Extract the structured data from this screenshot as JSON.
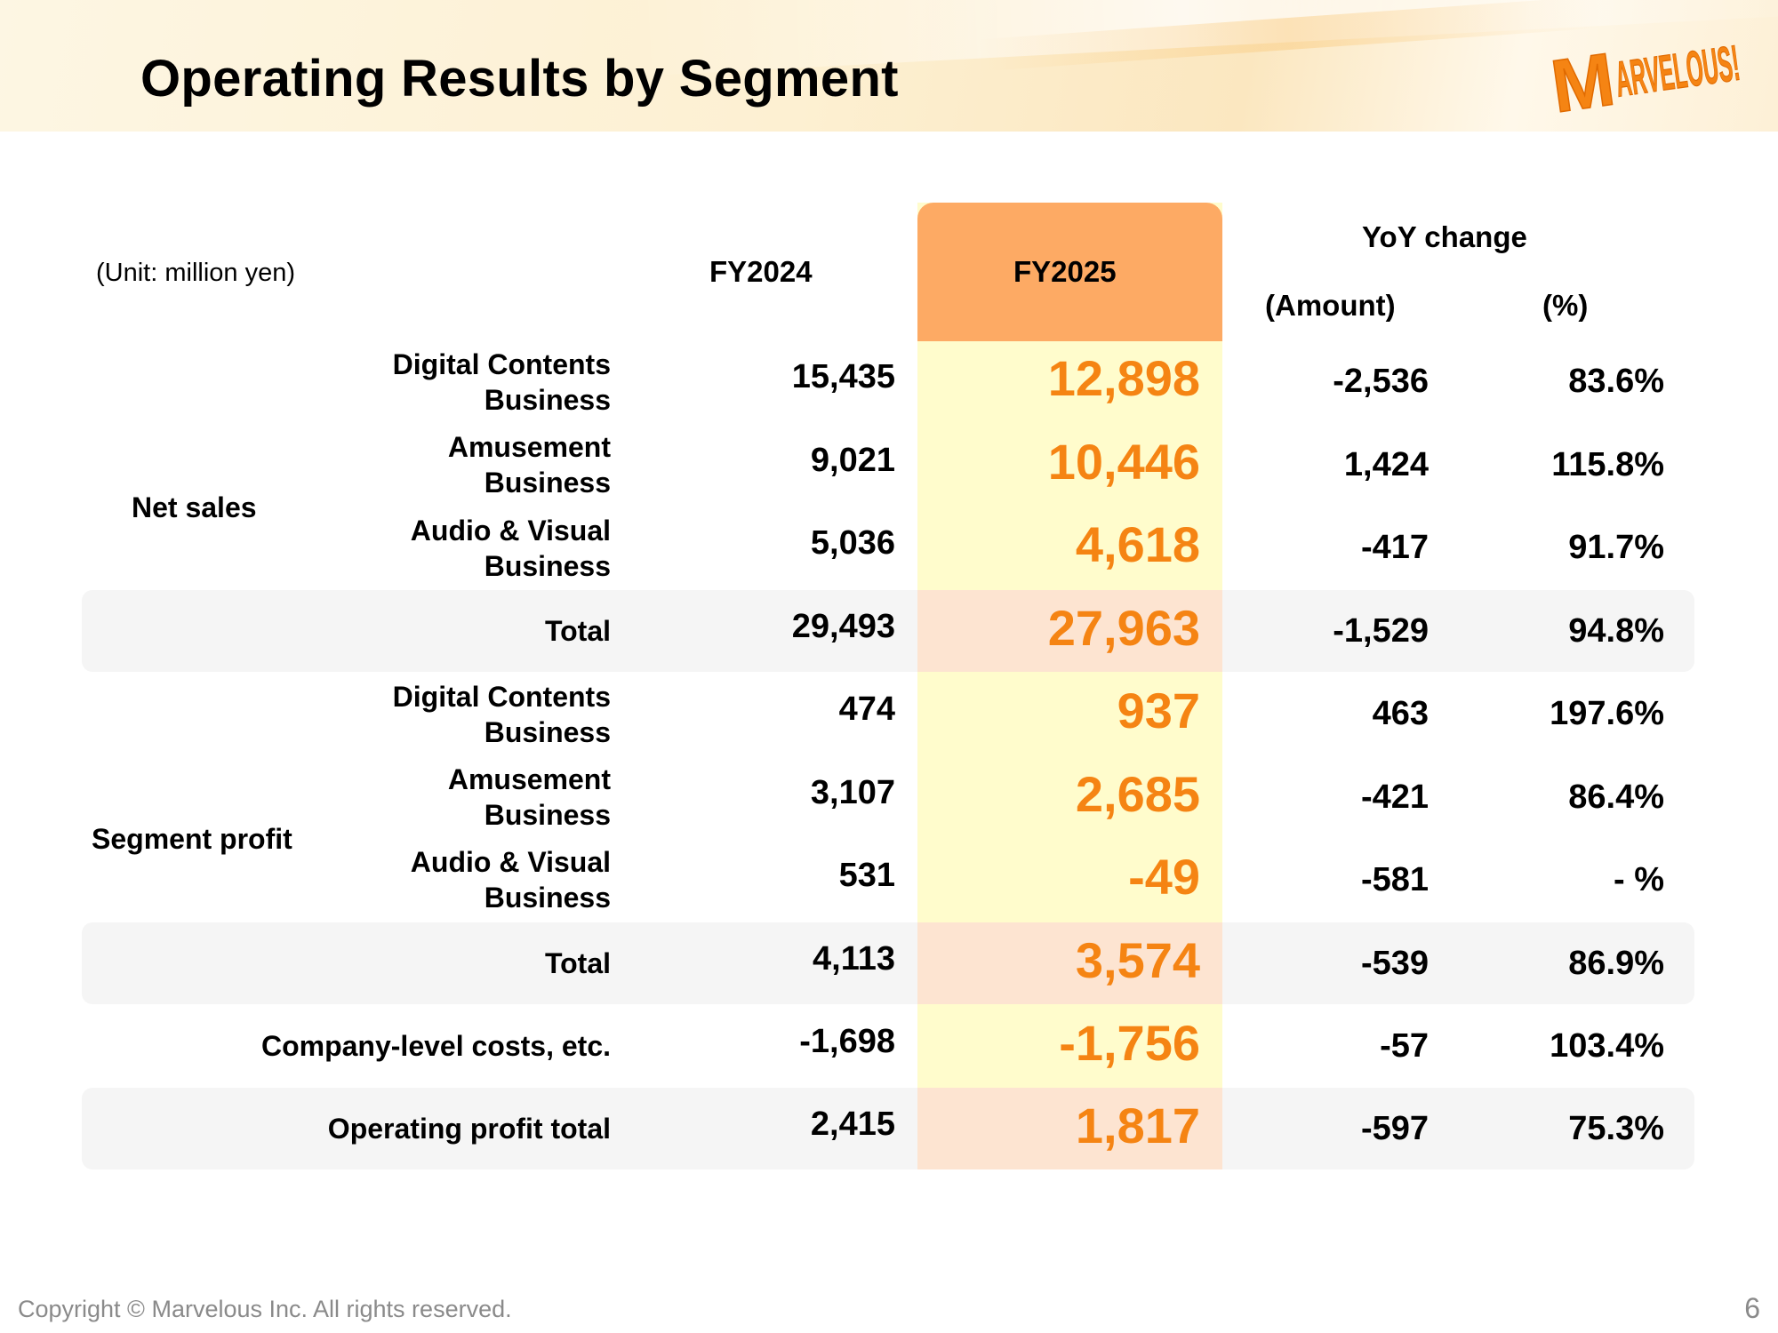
{
  "title": "Operating Results by Segment",
  "logo_text": "MARVELOUS!",
  "unit": "(Unit: million yen)",
  "columns": {
    "fy2024": "FY2024",
    "fy2025": "FY2025",
    "yoy": "YoY change",
    "amount": "(Amount)",
    "pct": "(%)"
  },
  "groups": {
    "net_sales": "Net sales",
    "segment_profit": "Segment profit"
  },
  "rows": [
    {
      "line1": "Digital Contents",
      "line2": "Business",
      "fy2024": "15,435",
      "fy2025": "12,898",
      "amount": "-2,536",
      "pct": "83.6%"
    },
    {
      "line1": "Amusement",
      "line2": "Business",
      "fy2024": "9,021",
      "fy2025": "10,446",
      "amount": "1,424",
      "pct": "115.8%"
    },
    {
      "line1": "Audio & Visual",
      "line2": "Business",
      "fy2024": "5,036",
      "fy2025": "4,618",
      "amount": "-417",
      "pct": "91.7%"
    },
    {
      "line1": "Total",
      "line2": "",
      "fy2024": "29,493",
      "fy2025": "27,963",
      "amount": "-1,529",
      "pct": "94.8%"
    },
    {
      "line1": "Digital Contents",
      "line2": "Business",
      "fy2024": "474",
      "fy2025": "937",
      "amount": "463",
      "pct": "197.6%"
    },
    {
      "line1": "Amusement",
      "line2": "Business",
      "fy2024": "3,107",
      "fy2025": "2,685",
      "amount": "-421",
      "pct": "86.4%"
    },
    {
      "line1": "Audio & Visual",
      "line2": "Business",
      "fy2024": "531",
      "fy2025": "-49",
      "amount": "-581",
      "pct": "- %"
    },
    {
      "line1": "Total",
      "line2": "",
      "fy2024": "4,113",
      "fy2025": "3,574",
      "amount": "-539",
      "pct": "86.9%"
    },
    {
      "line1": "Company-level costs, etc.",
      "line2": "",
      "fy2024": "-1,698",
      "fy2025": "-1,756",
      "amount": "-57",
      "pct": "103.4%"
    },
    {
      "line1": "Operating profit total",
      "line2": "",
      "fy2024": "2,415",
      "fy2025": "1,817",
      "amount": "-597",
      "pct": "75.3%"
    }
  ],
  "footer": "Copyright © Marvelous Inc. All rights reserved.",
  "page_number": "6",
  "colors": {
    "accent_orange": "#f58413",
    "header_cell": "#fdaa64",
    "fy2025_column": "#fffccc",
    "total_band": "#f5f5f5",
    "total_band_fy2025": "#fde4d1"
  }
}
